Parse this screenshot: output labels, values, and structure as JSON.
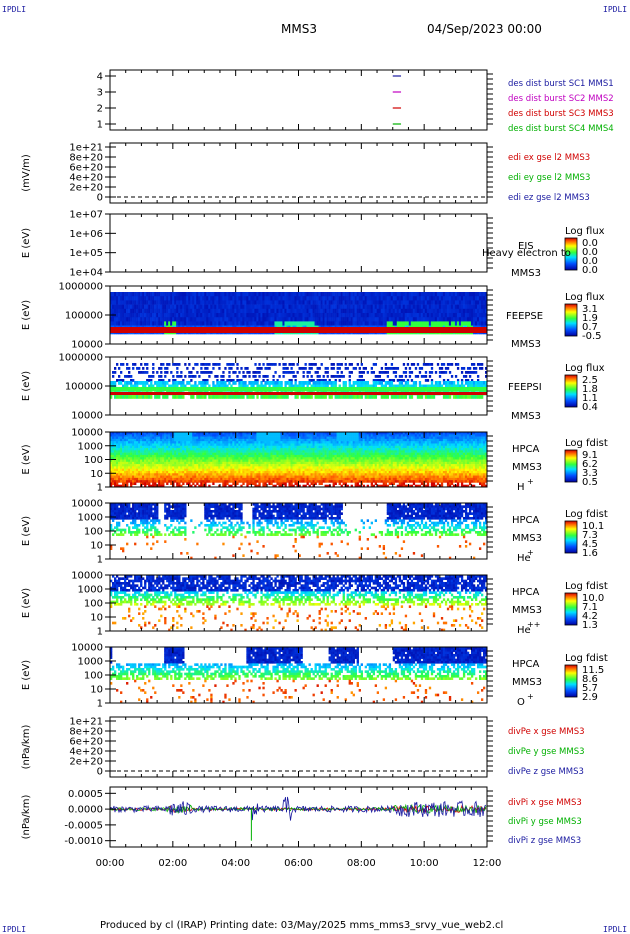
{
  "corner_label": "IPDLI",
  "header": {
    "spacecraft": "MMS3",
    "date": "04/Sep/2023 00:00"
  },
  "footer": "Produced by cl (IRAP)   Printing date: 03/May/2025   mms_mms3_srvy_vue_web2.cl",
  "xaxis": {
    "ticks": [
      "00:00",
      "02:00",
      "04:00",
      "06:00",
      "08:00",
      "10:00",
      "12:00"
    ],
    "range_hours": [
      0,
      12
    ]
  },
  "colors": {
    "sc1": "#1a1aa0",
    "sc2": "#c000c0",
    "sc3": "#d00000",
    "sc4": "#00b000",
    "edi_x": "#d00000",
    "edi_y": "#00b000",
    "edi_z": "#1a1aa0"
  },
  "panels": {
    "p1": {
      "yticks": [
        "4",
        "3",
        "2",
        "1"
      ],
      "legend": [
        {
          "text": "des dist burst SC1 MMS1",
          "color": "#1a1aa0"
        },
        {
          "text": "des dist burst SC2 MMS2",
          "color": "#c000c0"
        },
        {
          "text": "des dist burst SC3 MMS3",
          "color": "#d00000"
        },
        {
          "text": "des dist burst SC4 MMS4",
          "color": "#00b000"
        }
      ]
    },
    "p2": {
      "ylabel": "(mV/m)",
      "yticks": [
        "1e+21",
        "8e+20",
        "6e+20",
        "4e+20",
        "2e+20",
        "0"
      ],
      "legend": [
        {
          "text": "edi ex gse l2 MMS3",
          "color": "#d00000"
        },
        {
          "text": "edi ey gse l2 MMS3",
          "color": "#00b000"
        },
        {
          "text": "edi ez gse l2 MMS3",
          "color": "#1a1aa0"
        }
      ]
    },
    "p3": {
      "ylabel": "E (eV)",
      "yticks": [
        "1e+07",
        "1e+06",
        "1e+05",
        "1e+04"
      ],
      "inst": "EIS",
      "sc": "MMS3",
      "overlay": "Heavy electron to",
      "cb_title": "Log flux",
      "cb_ticks": [
        "0.0",
        "0.0",
        "0.0",
        "0.0"
      ]
    },
    "p4": {
      "ylabel": "E (eV)",
      "yticks": [
        "1000000",
        "100000",
        "10000"
      ],
      "inst": "FEEPSE",
      "sc": "MMS3",
      "cb_title": "Log flux",
      "cb_ticks": [
        "3.1",
        "1.9",
        "0.7",
        "-0.5"
      ]
    },
    "p5": {
      "ylabel": "E (eV)",
      "yticks": [
        "1000000",
        "100000",
        "10000"
      ],
      "inst": "FEEPSI",
      "sc": "MMS3",
      "cb_title": "Log flux",
      "cb_ticks": [
        "2.5",
        "1.8",
        "1.1",
        "0.4"
      ]
    },
    "p6": {
      "ylabel": "E (eV)",
      "yticks": [
        "10000",
        "1000",
        "100",
        "10",
        "1"
      ],
      "inst": "HPCA",
      "sc": "MMS3",
      "species": "H",
      "charge": "+",
      "cb_title": "Log fdist",
      "cb_ticks": [
        "9.1",
        "6.2",
        "3.3",
        "0.5"
      ]
    },
    "p7": {
      "ylabel": "E (eV)",
      "yticks": [
        "10000",
        "1000",
        "100",
        "10",
        "1"
      ],
      "inst": "HPCA",
      "sc": "MMS3",
      "species": "He",
      "charge": "+",
      "cb_title": "Log fdist",
      "cb_ticks": [
        "10.1",
        "7.3",
        "4.5",
        "1.6"
      ]
    },
    "p8": {
      "ylabel": "E (eV)",
      "yticks": [
        "10000",
        "1000",
        "100",
        "10",
        "1"
      ],
      "inst": "HPCA",
      "sc": "MMS3",
      "species": "He",
      "charge": "++",
      "cb_title": "Log fdist",
      "cb_ticks": [
        "10.0",
        "7.1",
        "4.2",
        "1.3"
      ]
    },
    "p9": {
      "ylabel": "E (eV)",
      "yticks": [
        "10000",
        "1000",
        "100",
        "10",
        "1"
      ],
      "inst": "HPCA",
      "sc": "MMS3",
      "species": "O",
      "charge": "+",
      "cb_title": "Log fdist",
      "cb_ticks": [
        "11.5",
        "8.6",
        "5.7",
        "2.9"
      ]
    },
    "p10": {
      "ylabel": "(nPa/km)",
      "yticks": [
        "1e+21",
        "8e+20",
        "6e+20",
        "4e+20",
        "2e+20",
        "0"
      ],
      "legend": [
        {
          "text": "divPe x gse MMS3",
          "color": "#d00000"
        },
        {
          "text": "divPe y gse MMS3",
          "color": "#00b000"
        },
        {
          "text": "divPe z gse MMS3",
          "color": "#1a1aa0"
        }
      ]
    },
    "p11": {
      "ylabel": "(nPa/km)",
      "yticks": [
        "0.0005",
        "0.0000",
        "-0.0005",
        "-0.0010"
      ],
      "legend": [
        {
          "text": "divPi x gse MMS3",
          "color": "#d00000"
        },
        {
          "text": "divPi y gse MMS3",
          "color": "#00b000"
        },
        {
          "text": "divPi z gse MMS3",
          "color": "#1a1aa0"
        }
      ]
    }
  },
  "chart_data": [
    {
      "type": "scatter",
      "panel": "burst intervals",
      "note_series": [
        {
          "name": "des dist burst SC1 MMS1",
          "x": [
            9.0,
            9.2
          ],
          "y": [
            4,
            4
          ]
        },
        {
          "name": "des dist burst SC2 MMS2",
          "x": [
            9.0,
            9.2
          ],
          "y": [
            3,
            3
          ]
        },
        {
          "name": "des dist burst SC3 MMS3",
          "x": [
            9.0,
            9.2
          ],
          "y": [
            2,
            2
          ]
        },
        {
          "name": "des dist burst SC4 MMS4",
          "x": [
            9.0,
            9.2
          ],
          "y": [
            1,
            1
          ]
        }
      ],
      "ylim": [
        0.5,
        4.5
      ]
    },
    {
      "type": "line",
      "panel": "EDI E-field",
      "ylabel": "(mV/m)",
      "ylim": [
        0,
        1e+21
      ]
    },
    {
      "type": "heatmap",
      "panel": "EIS",
      "ylabel": "E (eV)",
      "ylim": [
        10000.0,
        10000000.0
      ],
      "colorbar": "Log flux"
    },
    {
      "type": "heatmap",
      "panel": "FEEPSE",
      "ylabel": "E (eV)",
      "ylim": [
        10000.0,
        1000000.0
      ],
      "colorbar": "Log flux",
      "crange": [
        -0.5,
        3.1
      ]
    },
    {
      "type": "heatmap",
      "panel": "FEEPSI",
      "ylabel": "E (eV)",
      "ylim": [
        10000.0,
        1000000.0
      ],
      "colorbar": "Log flux",
      "crange": [
        0.4,
        2.5
      ]
    },
    {
      "type": "heatmap",
      "panel": "HPCA H+",
      "ylabel": "E (eV)",
      "ylim": [
        1,
        10000.0
      ],
      "colorbar": "Log fdist",
      "crange": [
        0.5,
        9.1
      ]
    },
    {
      "type": "heatmap",
      "panel": "HPCA He+",
      "ylabel": "E (eV)",
      "ylim": [
        1,
        10000.0
      ],
      "colorbar": "Log fdist",
      "crange": [
        1.6,
        10.1
      ]
    },
    {
      "type": "heatmap",
      "panel": "HPCA He++",
      "ylabel": "E (eV)",
      "ylim": [
        1,
        10000.0
      ],
      "colorbar": "Log fdist",
      "crange": [
        1.3,
        10.0
      ]
    },
    {
      "type": "heatmap",
      "panel": "HPCA O+",
      "ylabel": "E (eV)",
      "ylim": [
        1,
        10000.0
      ],
      "colorbar": "Log fdist",
      "crange": [
        2.9,
        11.5
      ]
    },
    {
      "type": "line",
      "panel": "divPe",
      "ylabel": "(nPa/km)",
      "ylim": [
        0,
        1e+21
      ]
    },
    {
      "type": "line",
      "panel": "divPi",
      "ylabel": "(nPa/km)",
      "ylim": [
        -0.0012,
        0.0007
      ]
    }
  ]
}
